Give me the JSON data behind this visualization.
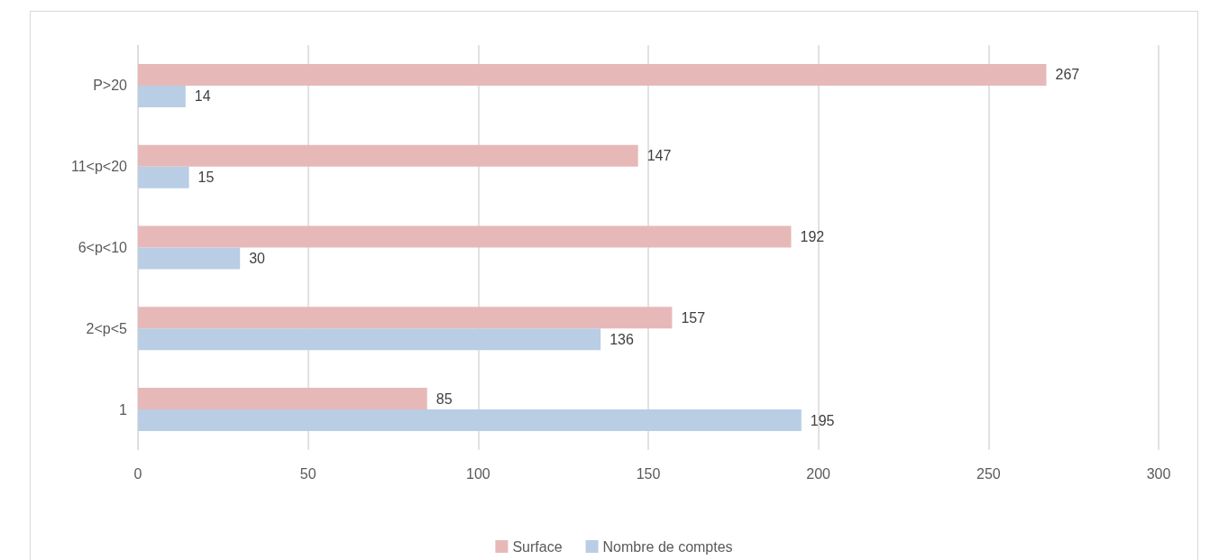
{
  "chart_data": {
    "type": "bar",
    "orientation": "horizontal",
    "categories": [
      "P>20",
      "11<p<20",
      "6<p<10",
      "2<p<5",
      "1"
    ],
    "series": [
      {
        "name": "Surface",
        "color": "#e6b9b8",
        "values": [
          267,
          147,
          192,
          157,
          85
        ]
      },
      {
        "name": "Nombre de comptes",
        "color": "#b9cde5",
        "values": [
          14,
          15,
          30,
          136,
          195
        ]
      }
    ],
    "xlim": [
      0,
      300
    ],
    "xticks": [
      0,
      50,
      100,
      150,
      200,
      250,
      300
    ],
    "grid": "x",
    "legend": "bottom",
    "data_labels": true
  }
}
